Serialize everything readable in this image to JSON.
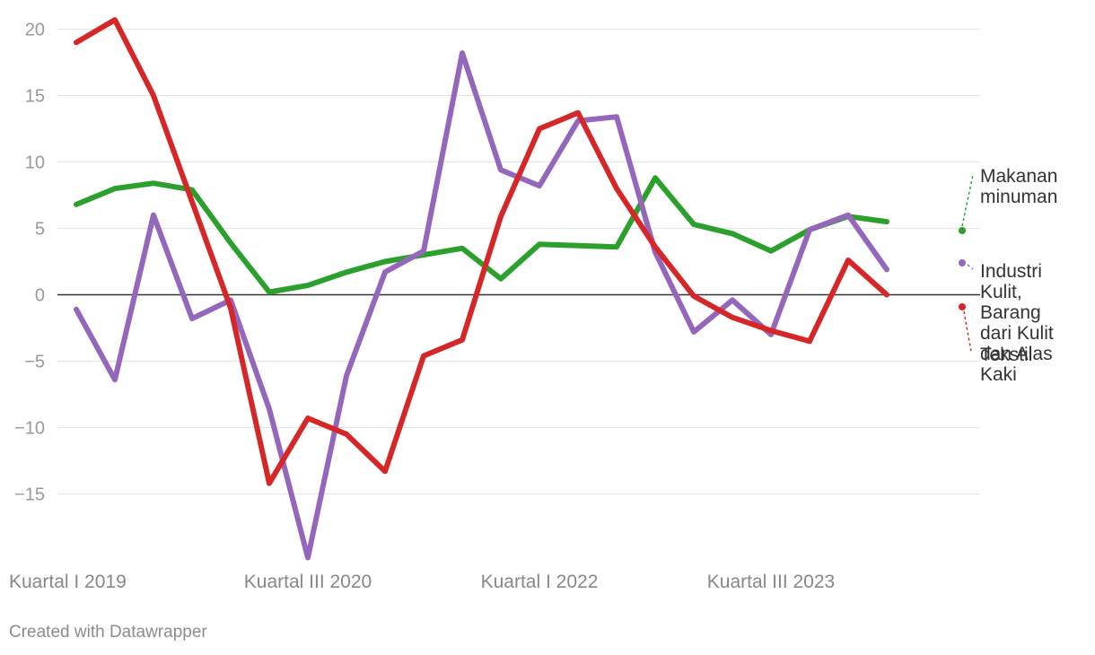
{
  "chart_data": {
    "type": "line",
    "title": "",
    "xlabel": "",
    "ylabel": "",
    "ylim": [
      -20,
      21
    ],
    "grid": true,
    "y_ticks": [
      20,
      15,
      10,
      5,
      0,
      -5,
      -10,
      -15
    ],
    "y_tick_labels": [
      "20",
      "15",
      "10",
      "5",
      "0",
      "−5",
      "−10",
      "−15"
    ],
    "x_ticks": [
      {
        "index": 0,
        "label": "Kuartal I 2019"
      },
      {
        "index": 6,
        "label": "Kuartal III 2020"
      },
      {
        "index": 12,
        "label": "Kuartal I 2022"
      },
      {
        "index": 18,
        "label": "Kuartal III 2023"
      }
    ],
    "x": [
      "Q1 2019",
      "Q2 2019",
      "Q3 2019",
      "Q4 2019",
      "Q1 2020",
      "Q2 2020",
      "Q3 2020",
      "Q4 2020",
      "Q1 2021",
      "Q2 2021",
      "Q3 2021",
      "Q4 2021",
      "Q1 2022",
      "Q2 2022",
      "Q3 2022",
      "Q4 2022",
      "Q1 2023",
      "Q2 2023",
      "Q3 2023",
      "Q4 2023",
      "Q1 2024",
      "Q2 2024"
    ],
    "series": [
      {
        "name": "Makanan minuman",
        "label_lines": [
          "Makanan",
          "minuman"
        ],
        "color": "#2ca02c",
        "values": [
          6.8,
          8.0,
          8.4,
          7.9,
          3.9,
          0.2,
          0.7,
          1.7,
          2.5,
          3.0,
          3.5,
          1.2,
          3.8,
          3.7,
          3.6,
          8.8,
          5.3,
          4.6,
          3.3,
          4.9,
          5.9,
          5.5
        ]
      },
      {
        "name": "Industri Kulit, Barang dari Kulit dan Alas Kaki",
        "label_lines": [
          "Industri",
          "Kulit,",
          "Barang",
          "dari Kulit",
          "dan Alas",
          "Kaki"
        ],
        "color": "#9467bd",
        "values": [
          -1.1,
          -6.4,
          6.0,
          -1.8,
          -0.4,
          -8.6,
          -19.8,
          -6.1,
          1.7,
          3.3,
          18.2,
          9.4,
          8.2,
          13.1,
          13.4,
          3.2,
          -2.8,
          -0.4,
          -3.0,
          4.9,
          6.0,
          1.9
        ]
      },
      {
        "name": "Tekstil",
        "label_lines": [
          "Tekstil"
        ],
        "color": "#d62728",
        "values": [
          19.0,
          20.7,
          15.0,
          7.0,
          -1.0,
          -14.2,
          -9.3,
          -10.5,
          -13.3,
          -4.6,
          -3.4,
          5.9,
          12.5,
          13.7,
          8.0,
          3.6,
          -0.1,
          -1.7,
          -2.7,
          -3.5,
          2.6,
          0.0
        ]
      }
    ]
  },
  "credit": "Created with Datawrapper"
}
